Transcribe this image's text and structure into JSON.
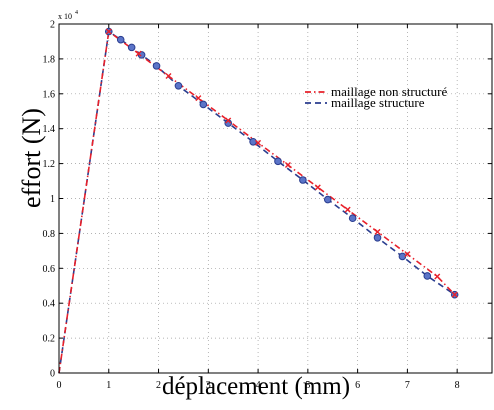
{
  "chart_data": {
    "type": "line",
    "title": "",
    "xlabel": "déplacement (mm)",
    "ylabel": "effort (N)",
    "y_exponent_label": "x 10",
    "y_exponent_power": "4",
    "xlim": [
      0,
      8.7
    ],
    "ylim": [
      0,
      2
    ],
    "x_ticks": [
      0,
      1,
      2,
      3,
      4,
      5,
      6,
      7,
      8
    ],
    "x_tick_labels": [
      "0",
      "1",
      "2",
      "3",
      "4",
      "5",
      "6",
      "7",
      "8"
    ],
    "y_ticks": [
      0,
      0.2,
      0.4,
      0.6,
      0.8,
      1,
      1.2,
      1.4,
      1.6,
      1.8,
      2
    ],
    "y_tick_labels": [
      "0",
      "0.2",
      "0.4",
      "0.6",
      "0.8",
      "1",
      "1.2",
      "1.4",
      "1.6",
      "1.8",
      "2"
    ],
    "grid": true,
    "legend_position": "top-right",
    "series": [
      {
        "name": "maillage non structuré",
        "color": "#e8202a",
        "line_style": "dash-dot",
        "marker": "x",
        "x": [
          0,
          1.0,
          1.6,
          2.2,
          2.8,
          3.4,
          4.0,
          4.6,
          5.2,
          5.8,
          6.4,
          7.0,
          7.6,
          7.95
        ],
        "y": [
          0,
          1.957,
          1.83,
          1.702,
          1.575,
          1.447,
          1.319,
          1.192,
          1.064,
          0.936,
          0.809,
          0.681,
          0.553,
          0.449
        ]
      },
      {
        "name": "maillage structure",
        "color": "#2a3d8f",
        "line_style": "dashed",
        "marker": "o",
        "x": [
          0,
          1.0,
          1.24,
          1.46,
          1.66,
          1.96,
          2.4,
          2.9,
          3.4,
          3.9,
          4.4,
          4.9,
          5.4,
          5.9,
          6.4,
          6.9,
          7.4,
          7.95
        ],
        "y": [
          0,
          1.957,
          1.91,
          1.866,
          1.823,
          1.76,
          1.646,
          1.539,
          1.432,
          1.325,
          1.213,
          1.106,
          0.994,
          0.887,
          0.775,
          0.668,
          0.556,
          0.449
        ]
      }
    ]
  }
}
